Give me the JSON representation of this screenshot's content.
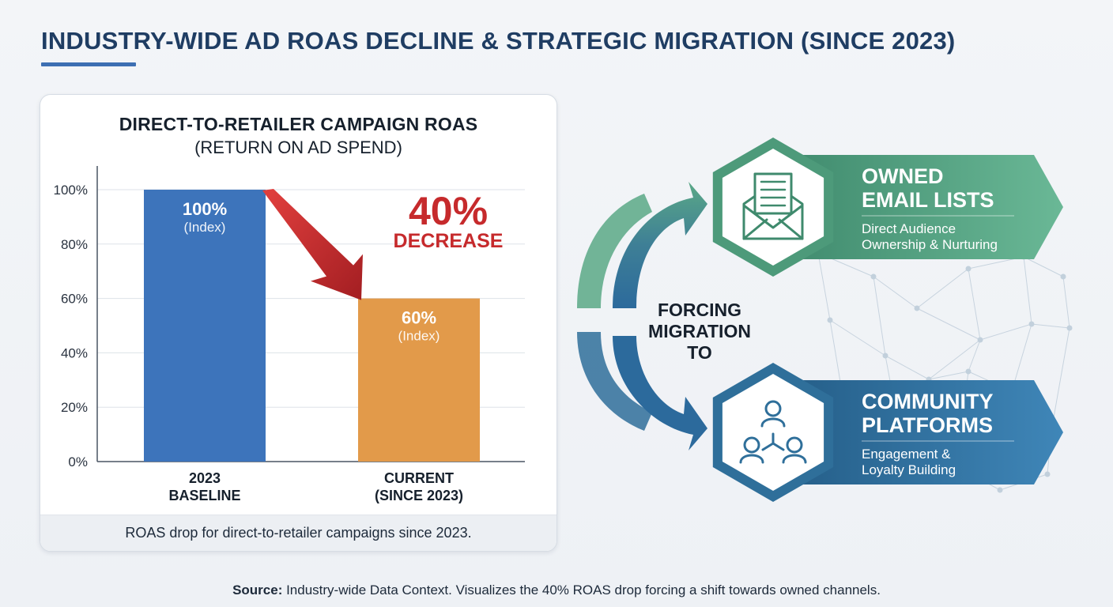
{
  "page": {
    "title": "INDUSTRY-WIDE AD ROAS DECLINE & STRATEGIC MIGRATION (SINCE 2023)",
    "source_label": "Source:",
    "source_text": " Industry-wide Data Context. Visualizes the 40% ROAS drop forcing a shift towards owned channels."
  },
  "colors": {
    "accent": "#1f3d63",
    "baseline_bar": "#3d74bb",
    "current_bar": "#e29a4a",
    "decrease_red": "#c62a2c",
    "email_green": "#4d9a7a",
    "community_blue": "#2f6f9a"
  },
  "chart_data": {
    "type": "bar",
    "title": "DIRECT-TO-RETAILER CAMPAIGN ROAS",
    "subtitle": "(RETURN ON AD SPEND)",
    "categories": [
      "2023\nBASELINE",
      "CURRENT\n(SINCE 2023)"
    ],
    "values": [
      100,
      60
    ],
    "data_labels": [
      {
        "value": "100%",
        "note": "(Index)"
      },
      {
        "value": "60%",
        "note": "(Index)"
      }
    ],
    "ylim": [
      0,
      100
    ],
    "yticks": [
      "0%",
      "20%",
      "40%",
      "60%",
      "80%",
      "100%"
    ],
    "grid": true,
    "annotation": {
      "value": "40%",
      "label": "DECREASE"
    },
    "caption": "ROAS drop for direct-to-retailer campaigns since 2023."
  },
  "migration": {
    "center_text": [
      "FORCING",
      "MIGRATION",
      "TO"
    ],
    "channels": [
      {
        "title": [
          "OWNED",
          "EMAIL LISTS"
        ],
        "desc": [
          "Direct Audience",
          "Ownership & Nurturing"
        ],
        "icon": "envelope-icon"
      },
      {
        "title": [
          "COMMUNITY",
          "PLATFORMS"
        ],
        "desc": [
          "Engagement &",
          "Loyalty Building"
        ],
        "icon": "community-icon"
      }
    ]
  }
}
